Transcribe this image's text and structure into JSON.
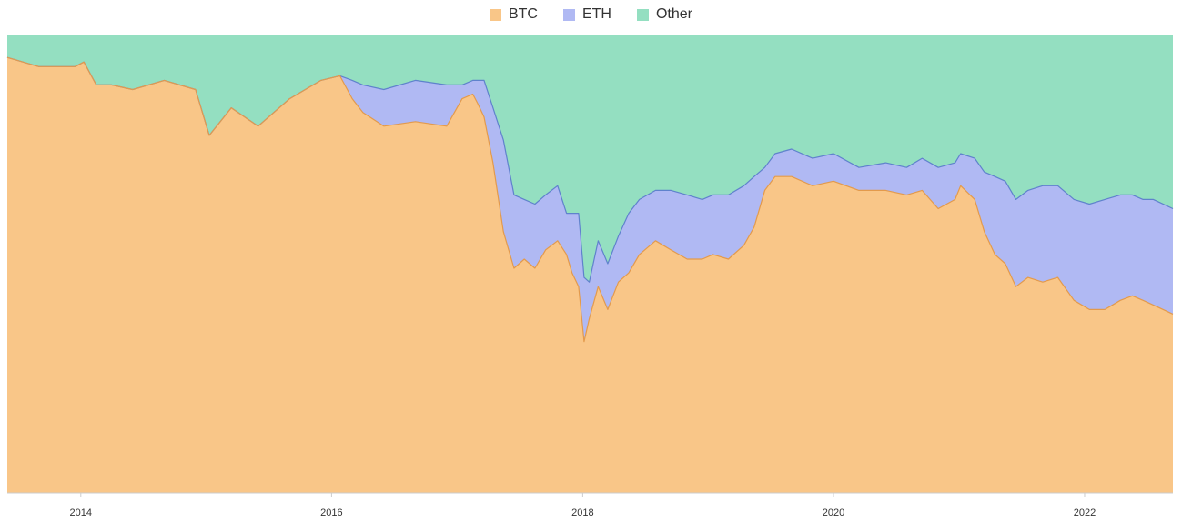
{
  "chart_data": {
    "type": "area",
    "stacked": true,
    "normalized_percent": true,
    "title": "",
    "xlabel": "",
    "ylabel": "",
    "legend_position": "top-center",
    "grid": false,
    "x_range": [
      "2013-06-01",
      "2022-09-15"
    ],
    "y_range": [
      0,
      100
    ],
    "x_tick_labels": [
      "2014",
      "2016",
      "2018",
      "2020",
      "2022"
    ],
    "x_tick_values": [
      "2014-01-01",
      "2016-01-01",
      "2018-01-01",
      "2020-01-01",
      "2022-01-01"
    ],
    "series": [
      {
        "name": "BTC",
        "color": "#f9c688",
        "line_color": "#e39a4c",
        "x": [
          "2013-06-01",
          "2013-09-01",
          "2013-12-15",
          "2014-01-10",
          "2014-02-15",
          "2014-04-01",
          "2014-06-01",
          "2014-09-01",
          "2014-12-01",
          "2015-01-10",
          "2015-03-15",
          "2015-06-01",
          "2015-09-01",
          "2015-12-01",
          "2016-01-25",
          "2016-03-01",
          "2016-04-01",
          "2016-06-01",
          "2016-09-01",
          "2016-12-01",
          "2017-01-15",
          "2017-02-15",
          "2017-03-01",
          "2017-03-20",
          "2017-04-15",
          "2017-05-15",
          "2017-06-15",
          "2017-07-15",
          "2017-08-15",
          "2017-09-15",
          "2017-10-20",
          "2017-11-15",
          "2017-12-01",
          "2017-12-20",
          "2018-01-05",
          "2018-01-20",
          "2018-02-15",
          "2018-03-15",
          "2018-04-15",
          "2018-05-15",
          "2018-06-15",
          "2018-08-01",
          "2018-09-15",
          "2018-11-01",
          "2018-12-15",
          "2019-01-15",
          "2019-03-01",
          "2019-04-15",
          "2019-05-15",
          "2019-06-15",
          "2019-07-15",
          "2019-09-01",
          "2019-11-01",
          "2020-01-01",
          "2020-03-15",
          "2020-06-01",
          "2020-08-01",
          "2020-09-15",
          "2020-11-01",
          "2020-12-20",
          "2021-01-05",
          "2021-02-15",
          "2021-03-15",
          "2021-04-15",
          "2021-05-15",
          "2021-06-15",
          "2021-07-20",
          "2021-09-01",
          "2021-10-15",
          "2021-12-01",
          "2022-01-15",
          "2022-03-01",
          "2022-04-15",
          "2022-05-20",
          "2022-06-20",
          "2022-07-20",
          "2022-09-15"
        ],
        "values": [
          95,
          93,
          93,
          94,
          89,
          89,
          88,
          90,
          88,
          78,
          84,
          80,
          86,
          90,
          91,
          86,
          83,
          80,
          81,
          80,
          86,
          87,
          85,
          82,
          72,
          57,
          49,
          51,
          49,
          53,
          55,
          52,
          48,
          45,
          33,
          38,
          45,
          40,
          46,
          48,
          52,
          55,
          53,
          51,
          51,
          52,
          51,
          54,
          58,
          66,
          69,
          69,
          67,
          68,
          66,
          66,
          65,
          66,
          62,
          64,
          67,
          64,
          57,
          52,
          50,
          45,
          47,
          46,
          47,
          42,
          40,
          40,
          42,
          43,
          42,
          41,
          39
        ]
      },
      {
        "name": "ETH",
        "color": "#b0b9f3",
        "line_color": "#5f82cc",
        "x": [
          "2013-06-01",
          "2013-09-01",
          "2013-12-15",
          "2014-01-10",
          "2014-02-15",
          "2014-04-01",
          "2014-06-01",
          "2014-09-01",
          "2014-12-01",
          "2015-01-10",
          "2015-03-15",
          "2015-06-01",
          "2015-09-01",
          "2015-12-01",
          "2016-01-25",
          "2016-03-01",
          "2016-04-01",
          "2016-06-01",
          "2016-09-01",
          "2016-12-01",
          "2017-01-15",
          "2017-02-15",
          "2017-03-01",
          "2017-03-20",
          "2017-04-15",
          "2017-05-15",
          "2017-06-15",
          "2017-07-15",
          "2017-08-15",
          "2017-09-15",
          "2017-10-20",
          "2017-11-15",
          "2017-12-01",
          "2017-12-20",
          "2018-01-05",
          "2018-01-20",
          "2018-02-15",
          "2018-03-15",
          "2018-04-15",
          "2018-05-15",
          "2018-06-15",
          "2018-08-01",
          "2018-09-15",
          "2018-11-01",
          "2018-12-15",
          "2019-01-15",
          "2019-03-01",
          "2019-04-15",
          "2019-05-15",
          "2019-06-15",
          "2019-07-15",
          "2019-09-01",
          "2019-11-01",
          "2020-01-01",
          "2020-03-15",
          "2020-06-01",
          "2020-08-01",
          "2020-09-15",
          "2020-11-01",
          "2020-12-20",
          "2021-01-05",
          "2021-02-15",
          "2021-03-15",
          "2021-04-15",
          "2021-05-15",
          "2021-06-15",
          "2021-07-20",
          "2021-09-01",
          "2021-10-15",
          "2021-12-01",
          "2022-01-15",
          "2022-03-01",
          "2022-04-15",
          "2022-05-20",
          "2022-06-20",
          "2022-07-20",
          "2022-09-15"
        ],
        "values": [
          0,
          0,
          0,
          0,
          0,
          0,
          0,
          0,
          0,
          0,
          0,
          0,
          0,
          0,
          0,
          4,
          6,
          8,
          9,
          9,
          3,
          3,
          5,
          8,
          12,
          20,
          16,
          13,
          14,
          12,
          12,
          9,
          13,
          16,
          14,
          8,
          10,
          10,
          10,
          13,
          12,
          11,
          13,
          14,
          13,
          13,
          14,
          13,
          11,
          5,
          5,
          6,
          6,
          6,
          5,
          6,
          6,
          7,
          9,
          8,
          7,
          9,
          13,
          17,
          18,
          19,
          19,
          21,
          20,
          22,
          23,
          24,
          23,
          22,
          22,
          23,
          23
        ]
      },
      {
        "name": "Other",
        "color": "#94dfc1",
        "line_color": "#94dfc1",
        "x": [
          "2013-06-01",
          "2013-09-01",
          "2013-12-15",
          "2014-01-10",
          "2014-02-15",
          "2014-04-01",
          "2014-06-01",
          "2014-09-01",
          "2014-12-01",
          "2015-01-10",
          "2015-03-15",
          "2015-06-01",
          "2015-09-01",
          "2015-12-01",
          "2016-01-25",
          "2016-03-01",
          "2016-04-01",
          "2016-06-01",
          "2016-09-01",
          "2016-12-01",
          "2017-01-15",
          "2017-02-15",
          "2017-03-01",
          "2017-03-20",
          "2017-04-15",
          "2017-05-15",
          "2017-06-15",
          "2017-07-15",
          "2017-08-15",
          "2017-09-15",
          "2017-10-20",
          "2017-11-15",
          "2017-12-01",
          "2017-12-20",
          "2018-01-05",
          "2018-01-20",
          "2018-02-15",
          "2018-03-15",
          "2018-04-15",
          "2018-05-15",
          "2018-06-15",
          "2018-08-01",
          "2018-09-15",
          "2018-11-01",
          "2018-12-15",
          "2019-01-15",
          "2019-03-01",
          "2019-04-15",
          "2019-05-15",
          "2019-06-15",
          "2019-07-15",
          "2019-09-01",
          "2019-11-01",
          "2020-01-01",
          "2020-03-15",
          "2020-06-01",
          "2020-08-01",
          "2020-09-15",
          "2020-11-01",
          "2020-12-20",
          "2021-01-05",
          "2021-02-15",
          "2021-03-15",
          "2021-04-15",
          "2021-05-15",
          "2021-06-15",
          "2021-07-20",
          "2021-09-01",
          "2021-10-15",
          "2021-12-01",
          "2022-01-15",
          "2022-03-01",
          "2022-04-15",
          "2022-05-20",
          "2022-06-20",
          "2022-07-20",
          "2022-09-15"
        ],
        "values": [
          5,
          7,
          7,
          6,
          11,
          11,
          12,
          10,
          12,
          22,
          16,
          20,
          14,
          10,
          9,
          10,
          11,
          12,
          10,
          11,
          11,
          10,
          10,
          10,
          16,
          23,
          35,
          36,
          37,
          35,
          33,
          39,
          39,
          39,
          53,
          54,
          45,
          50,
          44,
          39,
          36,
          34,
          34,
          35,
          36,
          35,
          35,
          33,
          31,
          29,
          26,
          25,
          27,
          26,
          29,
          28,
          29,
          27,
          29,
          28,
          26,
          27,
          30,
          31,
          32,
          36,
          34,
          33,
          33,
          36,
          37,
          36,
          35,
          35,
          36,
          36,
          38
        ]
      }
    ]
  }
}
